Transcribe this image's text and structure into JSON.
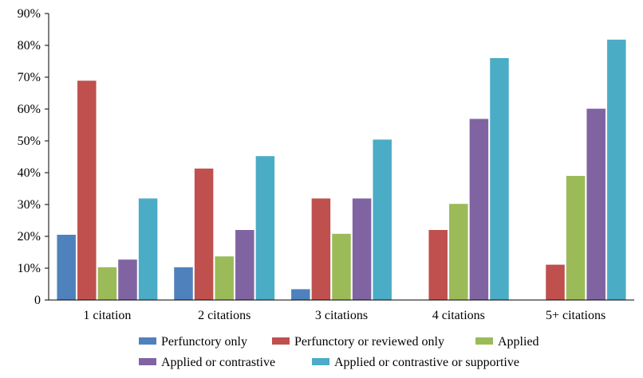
{
  "chart_data": {
    "type": "bar",
    "categories": [
      "1 citation",
      "2 citations",
      "3 citations",
      "4 citations",
      "5+ citations"
    ],
    "series": [
      {
        "name": "Perfunctory only",
        "color": "#4f81bd",
        "values": [
          20.5,
          10.3,
          3.4,
          0,
          0
        ]
      },
      {
        "name": "Perfunctory or reviewed only",
        "color": "#c0504d",
        "values": [
          68.9,
          41.3,
          31.9,
          22.0,
          11.1
        ]
      },
      {
        "name": "Applied",
        "color": "#9bbb59",
        "values": [
          10.3,
          13.7,
          20.8,
          30.2,
          39.0
        ]
      },
      {
        "name": "Applied or contrastive",
        "color": "#8064a2",
        "values": [
          12.7,
          22.0,
          31.9,
          56.9,
          60.1
        ]
      },
      {
        "name": "Applied or contrastive or supportive",
        "color": "#4bacc6",
        "values": [
          31.9,
          45.2,
          50.4,
          76.0,
          81.8
        ]
      }
    ],
    "ylim": [
      0,
      90
    ],
    "y_ticks": [
      "0",
      "10%",
      "20%",
      "30%",
      "40%",
      "50%",
      "60%",
      "70%",
      "80%",
      "90%"
    ],
    "legend_position": "bottom",
    "grid": false
  }
}
